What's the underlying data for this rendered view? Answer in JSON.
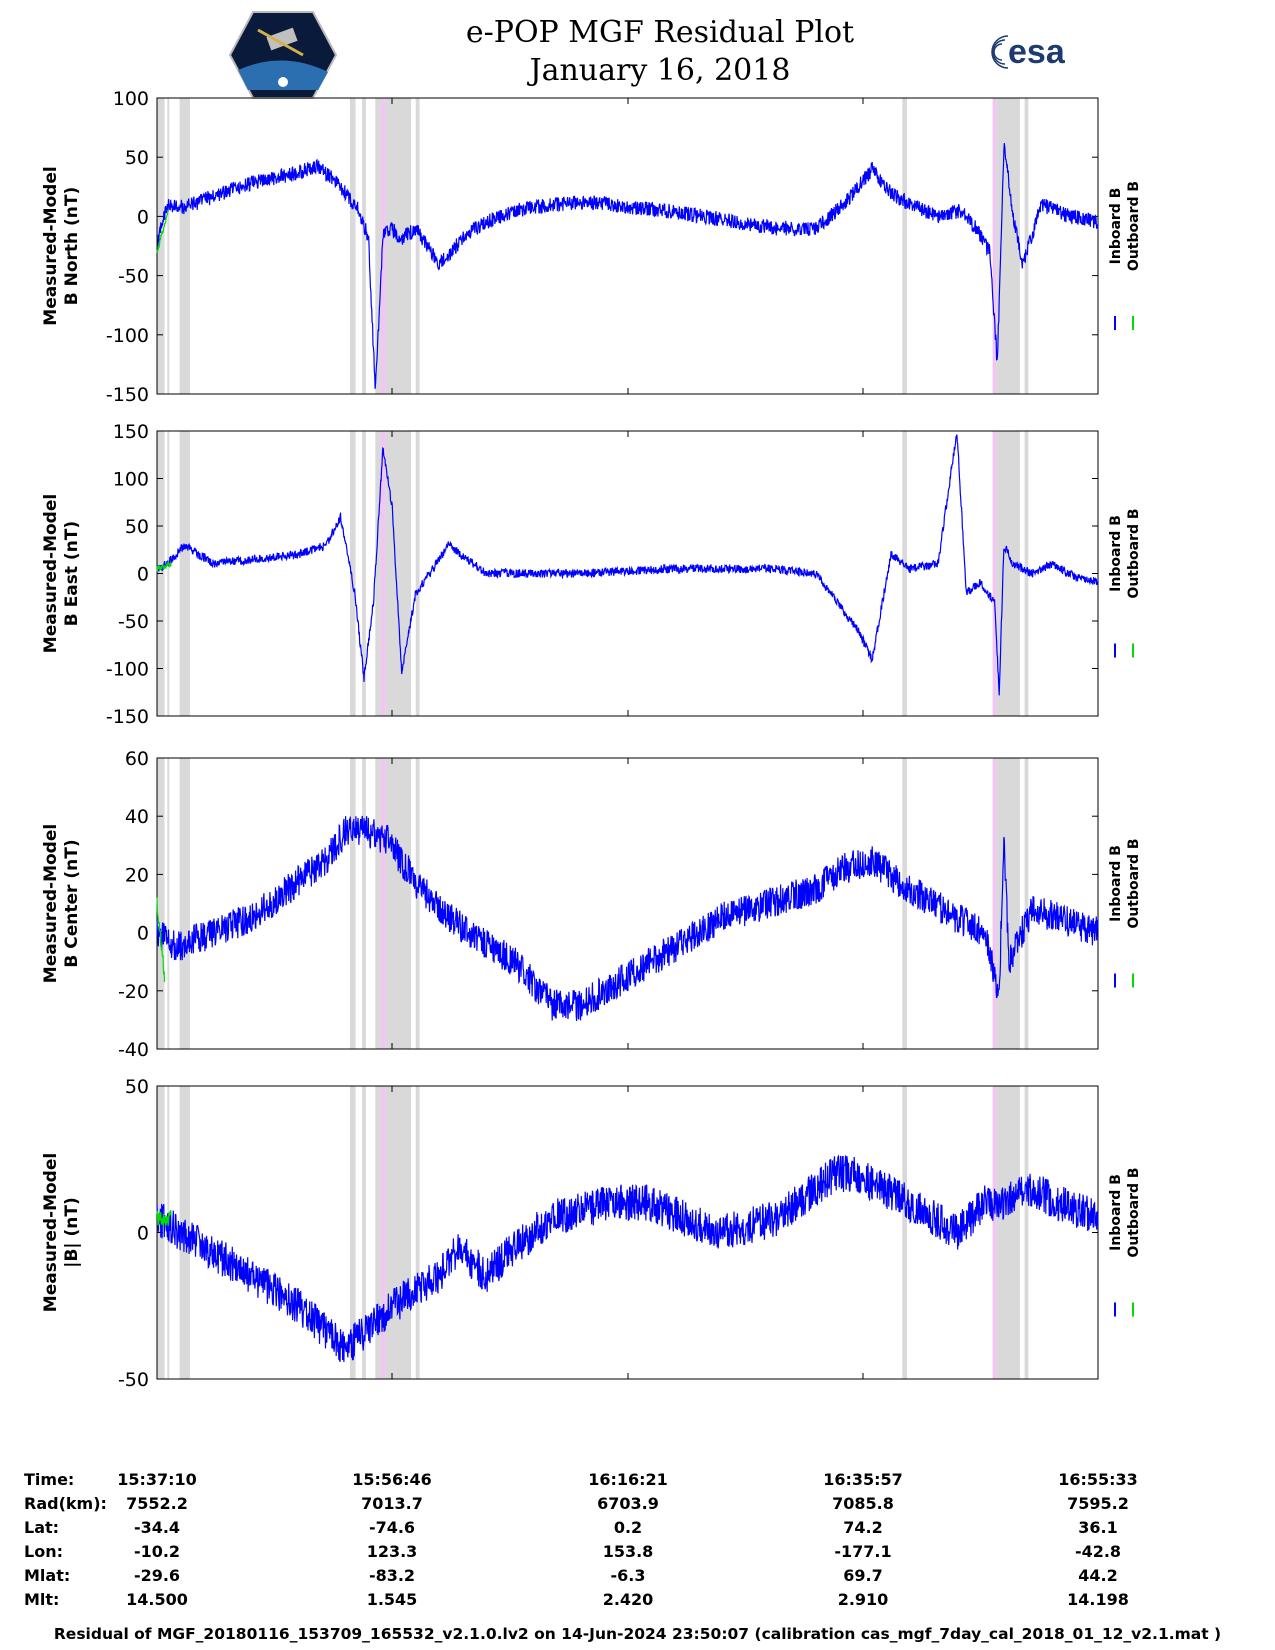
{
  "header": {
    "title": "e-POP MGF Residual Plot",
    "date": "January 16, 2018",
    "left_logo": "cassiope-mission-patch",
    "right_logo": "esa-logo",
    "right_logo_text": "esa"
  },
  "colors": {
    "inboard": "#0000ff",
    "outboard": "#00dd00",
    "shade_gray": "#d9d9d9",
    "shade_pink": "#f2c6f2"
  },
  "chart_data": [
    {
      "type": "line",
      "ylabel": [
        "Measured-Model",
        "B North (nT)"
      ],
      "ylim": [
        -150,
        100
      ],
      "yticks": [
        100,
        50,
        0,
        -50,
        -100,
        -150
      ],
      "legend": [
        "Inboard B",
        "Outboard B"
      ],
      "series": [
        {
          "name": "Inboard B",
          "color": "#0000ff",
          "x": [
            0,
            0.005,
            0.012,
            0.03,
            0.07,
            0.1,
            0.14,
            0.17,
            0.19,
            0.205,
            0.215,
            0.225,
            0.232,
            0.24,
            0.25,
            0.258,
            0.275,
            0.3,
            0.33,
            0.35,
            0.38,
            0.42,
            0.46,
            0.5,
            0.54,
            0.58,
            0.62,
            0.66,
            0.7,
            0.73,
            0.76,
            0.78,
            0.8,
            0.83,
            0.855,
            0.87,
            0.885,
            0.893,
            0.9,
            0.91,
            0.92,
            0.94,
            0.97,
            1.0
          ],
          "y": [
            -28,
            -5,
            10,
            8,
            20,
            28,
            35,
            42,
            30,
            15,
            5,
            -20,
            -150,
            -15,
            -10,
            -20,
            -10,
            -40,
            -15,
            -5,
            5,
            10,
            12,
            8,
            5,
            0,
            -5,
            -10,
            -10,
            10,
            40,
            20,
            10,
            0,
            5,
            -10,
            -30,
            -125,
            60,
            0,
            -40,
            10,
            0,
            -5
          ],
          "amp": 14
        },
        {
          "name": "Outboard B",
          "color": "#00dd00",
          "x": [
            0,
            0.012
          ],
          "y": [
            -30,
            5
          ],
          "amp": 5
        }
      ]
    },
    {
      "type": "line",
      "ylabel": [
        "Measured-Model",
        "B East (nT)"
      ],
      "ylim": [
        -150,
        150
      ],
      "yticks": [
        150,
        100,
        50,
        0,
        -50,
        -100,
        -150
      ],
      "legend": [
        "Inboard B",
        "Outboard B"
      ],
      "series": [
        {
          "name": "Inboard B",
          "color": "#0000ff",
          "x": [
            0,
            0.01,
            0.03,
            0.06,
            0.1,
            0.15,
            0.18,
            0.195,
            0.21,
            0.22,
            0.23,
            0.24,
            0.25,
            0.26,
            0.275,
            0.29,
            0.31,
            0.35,
            0.45,
            0.55,
            0.65,
            0.7,
            0.73,
            0.745,
            0.76,
            0.78,
            0.8,
            0.83,
            0.85,
            0.86,
            0.875,
            0.89,
            0.895,
            0.9,
            0.91,
            0.93,
            0.95,
            0.98,
            1.0
          ],
          "y": [
            5,
            10,
            30,
            10,
            15,
            20,
            30,
            60,
            -20,
            -110,
            -30,
            130,
            70,
            -105,
            -20,
            0,
            30,
            0,
            0,
            5,
            5,
            0,
            -40,
            -60,
            -90,
            20,
            5,
            10,
            150,
            -20,
            -10,
            -30,
            -125,
            30,
            10,
            0,
            10,
            -5,
            -10
          ],
          "amp": 10
        },
        {
          "name": "Outboard B",
          "color": "#00dd00",
          "x": [
            0,
            0.015
          ],
          "y": [
            5,
            10
          ],
          "amp": 6
        }
      ]
    },
    {
      "type": "line",
      "ylabel": [
        "Measured-Model",
        "B Center (nT)"
      ],
      "ylim": [
        -40,
        60
      ],
      "yticks": [
        60,
        40,
        20,
        0,
        -20,
        -40
      ],
      "legend": [
        "Inboard B",
        "Outboard B"
      ],
      "series": [
        {
          "name": "Inboard B",
          "color": "#0000ff",
          "x": [
            0,
            0.02,
            0.1,
            0.18,
            0.2,
            0.22,
            0.245,
            0.28,
            0.33,
            0.38,
            0.42,
            0.45,
            0.5,
            0.6,
            0.7,
            0.73,
            0.76,
            0.79,
            0.85,
            0.88,
            0.895,
            0.9,
            0.905,
            0.93,
            0.96,
            1.0
          ],
          "y": [
            0,
            -5,
            5,
            25,
            35,
            35,
            32,
            15,
            0,
            -10,
            -25,
            -25,
            -15,
            5,
            15,
            22,
            25,
            17,
            5,
            0,
            -22,
            35,
            -10,
            8,
            5,
            0
          ],
          "amp": 12
        },
        {
          "name": "Outboard B",
          "color": "#00dd00",
          "x": [
            0,
            0.008
          ],
          "y": [
            10,
            -15
          ],
          "amp": 5
        }
      ]
    },
    {
      "type": "line",
      "ylabel": [
        "Measured-Model",
        "|B| (nT)"
      ],
      "ylim": [
        -50,
        50
      ],
      "yticks": [
        50,
        0,
        -50
      ],
      "legend": [
        "Inboard B",
        "Outboard B"
      ],
      "series": [
        {
          "name": "Inboard B",
          "color": "#0000ff",
          "x": [
            0,
            0.05,
            0.1,
            0.15,
            0.2,
            0.25,
            0.3,
            0.32,
            0.35,
            0.38,
            0.42,
            0.48,
            0.52,
            0.6,
            0.66,
            0.72,
            0.74,
            0.8,
            0.85,
            0.88,
            0.9,
            0.93,
            0.96,
            1.0
          ],
          "y": [
            5,
            -5,
            -15,
            -25,
            -40,
            -25,
            -15,
            -5,
            -15,
            -5,
            5,
            10,
            10,
            0,
            5,
            20,
            20,
            10,
            0,
            10,
            10,
            15,
            10,
            5
          ],
          "amp": 14
        },
        {
          "name": "Outboard B",
          "color": "#00dd00",
          "x": [
            0,
            0.015
          ],
          "y": [
            5,
            5
          ],
          "amp": 6
        }
      ]
    }
  ],
  "footer": {
    "labels": [
      "Time:",
      "Rad(km):",
      "Lat:",
      "Lon:",
      "Mlat:",
      "Mlt:"
    ],
    "columns": [
      [
        "15:37:10",
        "7552.2",
        "-34.4",
        "-10.2",
        "-29.6",
        "14.500"
      ],
      [
        "15:56:46",
        "7013.7",
        "-74.6",
        "123.3",
        "-83.2",
        "1.545"
      ],
      [
        "16:16:21",
        "6703.9",
        "0.2",
        "153.8",
        "-6.3",
        "2.420"
      ],
      [
        "16:35:57",
        "7085.8",
        "74.2",
        "-177.1",
        "69.7",
        "2.910"
      ],
      [
        "16:55:33",
        "7595.2",
        "36.1",
        "-42.8",
        "44.2",
        "14.198"
      ]
    ],
    "footnote": "Residual of MGF_20180116_153709_165532_v2.1.0.lv2 on 14-Jun-2024 23:50:07 (calibration cas_mgf_7day_cal_2018_01_12_v2.1.mat )"
  }
}
